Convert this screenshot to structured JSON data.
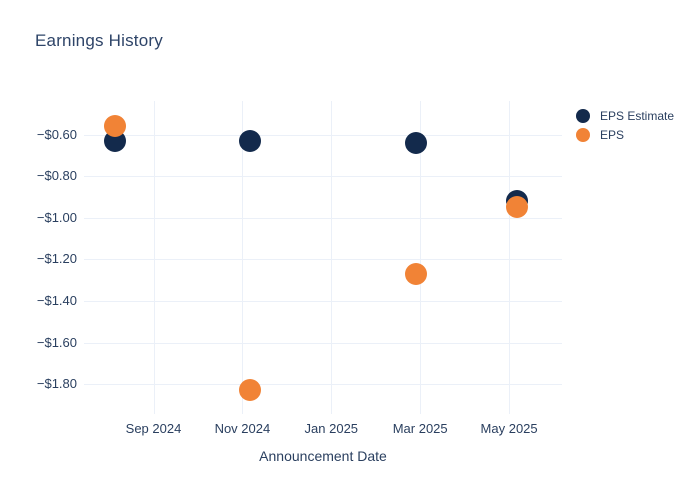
{
  "chart_data": {
    "type": "scatter",
    "title": "Earnings History",
    "xlabel": "Announcement Date",
    "ylabel": "",
    "grid": true,
    "grid_color": "#ebf0f8",
    "background_color": "#ffffff",
    "text_color": "#2a3f5f",
    "title_color": "#2e4468",
    "legend_position": "right-top",
    "ylim": [
      -1.94,
      -0.44
    ],
    "x_dates": [
      "2024-08-05",
      "2024-11-06",
      "2025-02-28",
      "2025-05-06"
    ],
    "series": [
      {
        "name": "EPS Estimate",
        "color": "#132a4c",
        "values": [
          -0.63,
          -0.63,
          -0.64,
          -0.92
        ]
      },
      {
        "name": "EPS",
        "color": "#f18336",
        "values": [
          -0.56,
          -1.83,
          -1.27,
          -0.95
        ]
      }
    ],
    "x_axis": {
      "title": "Announcement Date",
      "ticks": [
        {
          "label": "Sep 2024",
          "m": 0
        },
        {
          "label": "Nov 2024",
          "m": 2
        },
        {
          "label": "Jan 2025",
          "m": 4
        },
        {
          "label": "Mar 2025",
          "m": 6
        },
        {
          "label": "May 2025",
          "m": 8
        }
      ]
    },
    "y_axis": {
      "ticks": [
        {
          "label": "−$0.60",
          "value": -0.6
        },
        {
          "label": "−$0.80",
          "value": -0.8
        },
        {
          "label": "−$1.00",
          "value": -1.0
        },
        {
          "label": "−$1.20",
          "value": -1.2
        },
        {
          "label": "−$1.40",
          "value": -1.4
        },
        {
          "label": "−$1.60",
          "value": -1.6
        },
        {
          "label": "−$1.80",
          "value": -1.8
        }
      ]
    }
  }
}
